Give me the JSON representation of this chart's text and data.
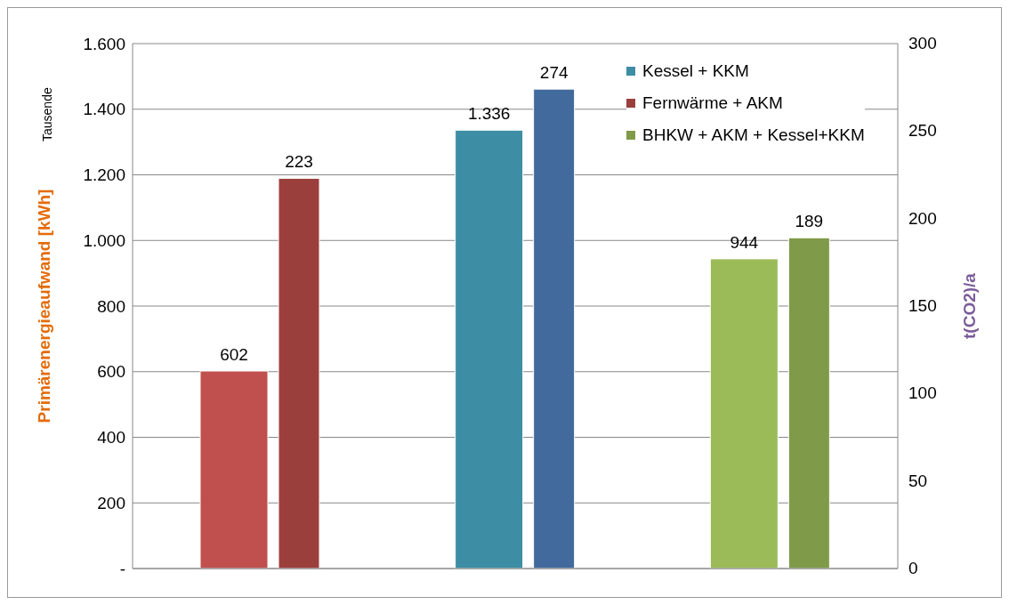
{
  "chart_data": {
    "type": "bar",
    "ylabel": "Primärenergieaufwand [kWh]",
    "y2label": "t(CO2)/a",
    "annotations": [
      "Tausende"
    ],
    "categories": [
      null,
      null,
      null
    ],
    "ylim": [
      0,
      1600
    ],
    "yticks": [
      {
        "value": 0,
        "label": "-"
      },
      200,
      400,
      600,
      800,
      {
        "value": 1000,
        "label": "1.000"
      },
      {
        "value": 1200,
        "label": "1.200"
      },
      {
        "value": 1400,
        "label": "1.400"
      },
      {
        "value": 1600,
        "label": "1.600"
      }
    ],
    "y2lim": [
      0,
      300
    ],
    "y2ticks": [
      0,
      50,
      100,
      150,
      200,
      250,
      300
    ],
    "grid": "y",
    "legend": "top right",
    "series": [
      {
        "name": "Kessel + KKM",
        "color": "#3d8da5",
        "values": [
          null,
          1336,
          null
        ],
        "value_labels": [
          null,
          "1.336",
          null
        ]
      },
      {
        "color": "#c0504d",
        "values": [
          602,
          null,
          null
        ],
        "value_labels": [
          "602",
          null,
          null
        ]
      },
      {
        "color": "#9bbb59",
        "values": [
          null,
          null,
          944
        ],
        "value_labels": [
          null,
          null,
          "944"
        ]
      },
      {
        "name": "Fernwärme + AKM",
        "color": "#9b3f3d",
        "values": [
          223,
          null,
          null
        ],
        "axis": "y2",
        "value_labels": [
          "223",
          null,
          null
        ]
      },
      {
        "color": "#426a9c",
        "values": [
          null,
          274,
          null
        ],
        "axis": "y2",
        "value_labels": [
          null,
          "274",
          null
        ]
      },
      {
        "name": "BHKW + AKM + Kessel+KKM",
        "color": "#7f9a48",
        "values": [
          null,
          null,
          189
        ],
        "axis": "y2",
        "value_labels": [
          null,
          null,
          "189"
        ]
      }
    ]
  }
}
